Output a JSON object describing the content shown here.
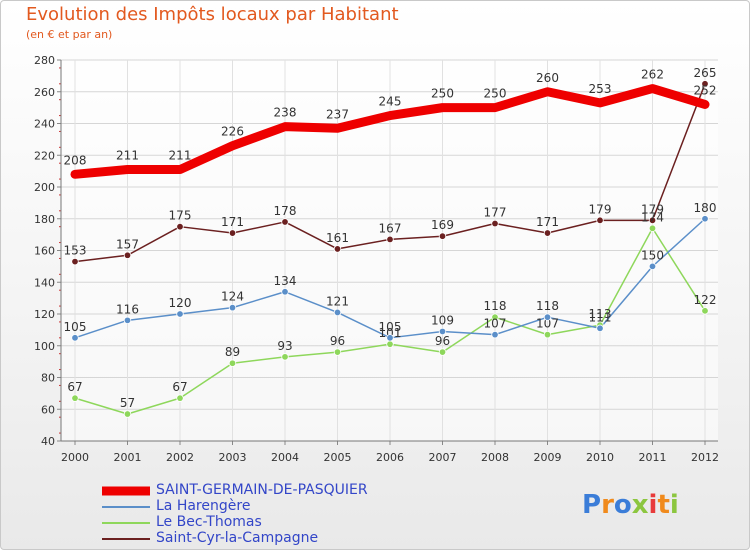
{
  "chart_data": {
    "type": "line",
    "title": "Evolution des Impôts locaux par Habitant",
    "subtitle": "(en € et par an)",
    "ylim": [
      40,
      280
    ],
    "yticks": [
      40,
      60,
      80,
      100,
      120,
      140,
      160,
      180,
      200,
      220,
      240,
      260,
      280
    ],
    "x": [
      "2000",
      "2001",
      "2002",
      "2003",
      "2004",
      "2005",
      "2006",
      "2007",
      "2008",
      "2009",
      "2010",
      "2011",
      "2012"
    ],
    "grid": true,
    "legend_placement": "bottom-left",
    "series": [
      {
        "name": "SAINT-GERMAIN-DE-PASQUIER",
        "color": "#ee0000",
        "values": [
          208,
          211,
          211,
          226,
          238,
          237,
          245,
          250,
          250,
          260,
          253,
          262,
          252
        ]
      },
      {
        "name": "La Harengère",
        "color": "#5b8fc9",
        "values": [
          105,
          116,
          120,
          124,
          134,
          121,
          105,
          109,
          107,
          118,
          111,
          150,
          180
        ]
      },
      {
        "name": "Le Bec-Thomas",
        "color": "#8ed75b",
        "values": [
          67,
          57,
          67,
          89,
          93,
          96,
          101,
          96,
          118,
          107,
          113,
          174,
          122
        ]
      },
      {
        "name": "Saint-Cyr-la-Campagne",
        "color": "#6b2020",
        "values": [
          153,
          157,
          175,
          171,
          178,
          161,
          167,
          169,
          177,
          171,
          179,
          179,
          265
        ]
      }
    ],
    "data_labels": {
      "SAINT-GERMAIN-DE-PASQUIER": [
        "208",
        "211",
        "211",
        "226",
        "238",
        "237",
        "245",
        "250",
        "250",
        "260",
        "253",
        "262",
        "252"
      ],
      "La Harengère": [
        "105",
        "116",
        "120",
        "124",
        "134",
        "121",
        "105",
        "109",
        "107",
        "118",
        "111",
        "150",
        "180"
      ],
      "Le Bec-Thomas": [
        "67",
        "57",
        "67",
        "89",
        "93",
        "96",
        "101",
        "96",
        "118",
        "107",
        "113",
        "174",
        "122"
      ],
      "Saint-Cyr-la-Campagne": [
        "153",
        "157",
        "175",
        "171",
        "178",
        "161",
        "167",
        "169",
        "177",
        "171",
        "179",
        "179",
        "265"
      ]
    }
  },
  "logo": {
    "text": "Proxiti",
    "colors": [
      "#3b7dd8",
      "#f08a1c",
      "#3b7dd8",
      "#8cc63f",
      "#e83b3b",
      "#f08a1c",
      "#8cc63f"
    ]
  }
}
